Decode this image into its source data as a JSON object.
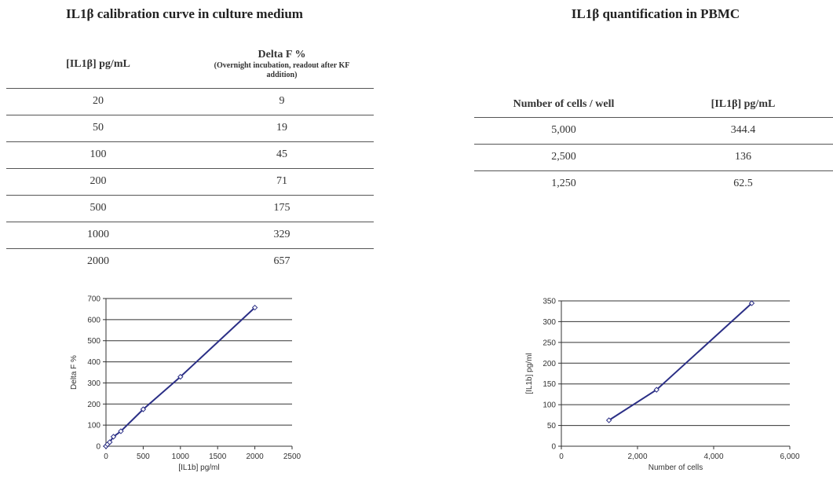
{
  "left": {
    "title": "IL1β calibration curve in culture medium",
    "table": {
      "col1_header": "[IL1β] pg/mL",
      "col2_header": "Delta F %",
      "col2_subheader": "(Overnight incubation, readout after KF addition)",
      "rows": [
        {
          "conc": "20",
          "delta": "9"
        },
        {
          "conc": "50",
          "delta": "19"
        },
        {
          "conc": "100",
          "delta": "45"
        },
        {
          "conc": "200",
          "delta": "71"
        },
        {
          "conc": "500",
          "delta": "175"
        },
        {
          "conc": "1000",
          "delta": "329"
        },
        {
          "conc": "2000",
          "delta": "657"
        }
      ]
    }
  },
  "right": {
    "title": "IL1β quantification in PBMC",
    "table": {
      "col1_header": "Number of cells / well",
      "col2_header": "[IL1β] pg/mL",
      "rows": [
        {
          "cells": "5,000",
          "conc": "344.4"
        },
        {
          "cells": "2,500",
          "conc": "136"
        },
        {
          "cells": "1,250",
          "conc": "62.5"
        }
      ]
    }
  },
  "chart_data": [
    {
      "type": "line",
      "xlabel": "[IL1b] pg/ml",
      "ylabel": "Delta F %",
      "xlim": [
        0,
        2500
      ],
      "ylim": [
        0,
        700
      ],
      "xticks": [
        "0",
        "500",
        "1000",
        "1500",
        "2000",
        "2500"
      ],
      "yticks": [
        "0",
        "100",
        "200",
        "300",
        "400",
        "500",
        "600",
        "700"
      ],
      "x": [
        0,
        20,
        50,
        100,
        200,
        500,
        1000,
        2000
      ],
      "y": [
        0,
        9,
        19,
        45,
        71,
        175,
        329,
        657
      ],
      "grid": "horizontal",
      "color": "#2b2f86"
    },
    {
      "type": "line",
      "xlabel": "Number of cells",
      "ylabel": "[IL1b] pg/ml",
      "xlim": [
        0,
        6000
      ],
      "ylim": [
        0,
        350
      ],
      "xticks": [
        "0",
        "2,000",
        "4,000",
        "6,000"
      ],
      "yticks": [
        "0",
        "50",
        "100",
        "150",
        "200",
        "250",
        "300",
        "350"
      ],
      "x": [
        1250,
        2500,
        5000
      ],
      "y": [
        62.5,
        136,
        344.4
      ],
      "grid": "horizontal",
      "color": "#2b2f86"
    }
  ]
}
